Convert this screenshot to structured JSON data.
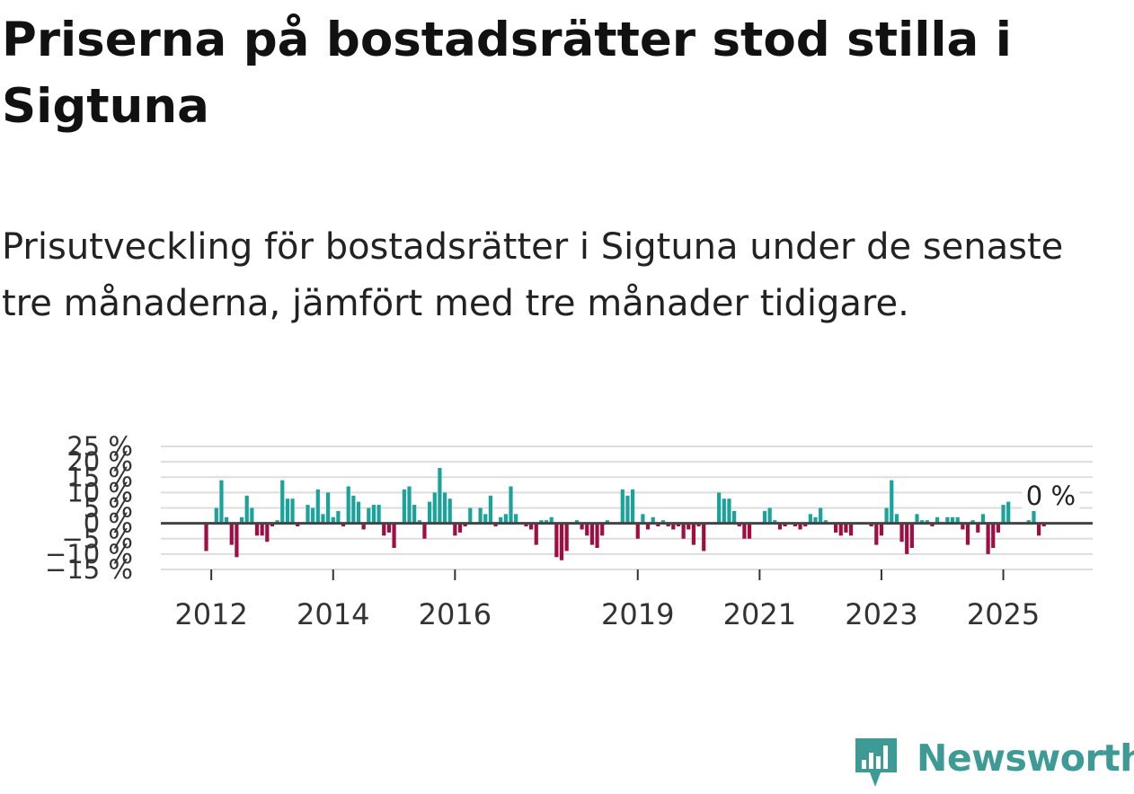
{
  "header": {
    "title": "Priserna på bostadsrätter stod stilla i Sigtuna",
    "subtitle": "Prisutveckling för bostadsrätter i Sigtuna under de senaste tre månaderna, jämfört med tre månader tidigare."
  },
  "brand": {
    "name": "Newsworthy",
    "color": "#3d9a94"
  },
  "colors": {
    "positive": "#1aa39a",
    "negative": "#a10d41",
    "zero_line": "#444444",
    "grid": "#dddddd"
  },
  "chart_data": {
    "type": "bar",
    "x_start": "2011-12",
    "values": [
      -9,
      0,
      5,
      14,
      2,
      -7,
      -11,
      2,
      9,
      5,
      -4,
      -4,
      -6,
      -1,
      1,
      14,
      8,
      8,
      -1,
      0,
      6,
      5,
      11,
      3,
      10,
      2,
      4,
      -1,
      12,
      9,
      7,
      -2,
      5,
      6,
      6,
      -4,
      -3,
      -8,
      0,
      11,
      12,
      6,
      1,
      -5,
      7,
      10,
      18,
      10,
      8,
      -4,
      -3,
      -1,
      5,
      0,
      5,
      3,
      9,
      -1,
      2,
      3,
      12,
      3,
      0,
      -1,
      -2,
      -7,
      1,
      1,
      2,
      -11,
      -12,
      -9,
      0,
      1,
      -2,
      -4,
      -7,
      -8,
      -4,
      1,
      0,
      0,
      11,
      9,
      11,
      -5,
      3,
      -2,
      2,
      -1,
      1,
      -1,
      -2,
      -1,
      -5,
      -2,
      -7,
      -1,
      -9,
      0,
      0,
      10,
      8,
      8,
      4,
      -1,
      -5,
      -5,
      0,
      0,
      4,
      5,
      1,
      -2,
      -1,
      0,
      -1,
      -2,
      -1,
      3,
      2,
      5,
      1,
      0,
      -3,
      -4,
      -3,
      -4,
      0,
      0,
      0,
      -1,
      -7,
      -4,
      5,
      14,
      3,
      -6,
      -10,
      -8,
      3,
      1,
      1,
      -1,
      2,
      0,
      2,
      2,
      2,
      -2,
      -7,
      1,
      -3,
      3,
      -10,
      -8,
      -3,
      6,
      7,
      0,
      0,
      0,
      1,
      4,
      -4,
      -1
    ],
    "tick_labels": [
      "2012",
      "2014",
      "2016",
      "2019",
      "2021",
      "2023",
      "2025"
    ],
    "tick_indices": [
      1,
      25,
      49,
      85,
      109,
      133,
      157
    ],
    "y_ticks": [
      25,
      20,
      15,
      10,
      5,
      0,
      -5,
      -10,
      -15
    ],
    "y_tick_labels": [
      "25 %",
      "20 %",
      "15 %",
      "10 %",
      "5 %",
      "0 %",
      "−5 %",
      "−10 %",
      "−15 %"
    ],
    "ylim": [
      -15,
      25
    ],
    "annotation": "0 %",
    "annotation_index": 166,
    "xlabel": "",
    "ylabel": ""
  }
}
